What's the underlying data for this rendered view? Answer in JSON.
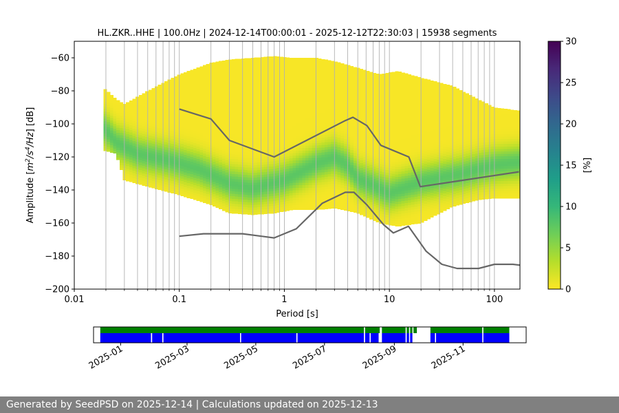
{
  "chart_data": [
    {
      "type": "heatmap",
      "title": "HL.ZKR..HHE | 100.0Hz | 2024-12-14T00:00:01 - 2025-12-12T22:30:03 | 15938 segments",
      "xlabel": "Period [s]",
      "ylabel": "Amplitude [m²/s⁴/Hz] [dB]",
      "ylabel_main": "Amplitude [",
      "ylabel_unit_m": "m",
      "ylabel_sup1": "2",
      "ylabel_unit_s": "/s",
      "ylabel_sup2": "4",
      "ylabel_unit_hz": "/Hz",
      "ylabel_tail": "] [dB]",
      "x_scale": "log",
      "xlim": [
        0.01,
        175
      ],
      "ylim": [
        -200,
        -50
      ],
      "x_tick_values": [
        0.01,
        0.1,
        1,
        10,
        100
      ],
      "x_tick_labels": [
        "0.01",
        "0.1",
        "1",
        "10",
        "100"
      ],
      "y_tick_values": [
        -200,
        -180,
        -160,
        -140,
        -120,
        -100,
        -80,
        -60
      ],
      "y_tick_labels": [
        "−200",
        "−180",
        "−160",
        "−140",
        "−120",
        "−100",
        "−80",
        "−60"
      ],
      "grid": "vertical",
      "colorbar": {
        "label": "[%]",
        "range": [
          0,
          30
        ],
        "tick_values": [
          0,
          5,
          10,
          15,
          20,
          25,
          30
        ],
        "tick_labels": [
          "0",
          "5",
          "10",
          "15",
          "20",
          "25",
          "30"
        ],
        "colormap": [
          "#fde725",
          "#b5de2b",
          "#6ece58",
          "#35b779",
          "#1f9e89",
          "#26828e",
          "#31688e",
          "#3e4989",
          "#482878",
          "#440154"
        ]
      },
      "density_extent": {
        "periods": [
          0.019,
          0.025,
          0.03,
          0.05,
          0.1,
          0.2,
          0.3,
          0.5,
          0.8,
          1.2,
          2,
          3,
          5,
          8,
          12,
          20,
          40,
          70,
          100,
          175
        ],
        "upper_db": [
          -78,
          -85,
          -88,
          -80,
          -70,
          -63,
          -61,
          -60,
          -59,
          -60,
          -60,
          -62,
          -66,
          -70,
          -68,
          -72,
          -77,
          -85,
          -90,
          -92
        ],
        "lower_db": [
          -116,
          -118,
          -134,
          -138,
          -143,
          -149,
          -154,
          -155,
          -154,
          -152,
          -152,
          -151,
          -154,
          -160,
          -162,
          -160,
          -150,
          -146,
          -145,
          -145
        ]
      },
      "mode_curve": {
        "periods": [
          0.019,
          0.025,
          0.04,
          0.08,
          0.15,
          0.3,
          0.5,
          1,
          2,
          3,
          4,
          5,
          7,
          10,
          20,
          50,
          100,
          175
        ],
        "db": [
          -102,
          -111,
          -118,
          -122,
          -127,
          -136,
          -139,
          -134,
          -124,
          -120,
          -125,
          -133,
          -137,
          -142,
          -135,
          -130,
          -125,
          -123
        ]
      },
      "series": [
        {
          "periods": [
            0.1,
            0.2,
            0.3,
            0.8,
            3.8,
            4.5,
            6.1,
            8.3,
            15.3,
            19.7,
            171
          ],
          "db": [
            -91,
            -97,
            -110,
            -120,
            -98,
            -96,
            -101,
            -113,
            -120,
            -138,
            -129
          ]
        },
        {
          "periods": [
            0.1,
            0.17,
            0.4,
            0.8,
            1.3,
            2.3,
            3.8,
            4.6,
            6.1,
            8.8,
            10.9,
            15.2,
            22.3,
            31.6,
            44.1,
            70.7,
            100,
            150,
            175
          ],
          "db": [
            -168,
            -166.5,
            -166.5,
            -169,
            -163.5,
            -148,
            -141.4,
            -141.4,
            -149,
            -161,
            -166,
            -162,
            -177,
            -185,
            -187.5,
            -187.5,
            -185,
            -185,
            -185.5
          ]
        }
      ]
    },
    {
      "type": "timeline",
      "x_tick_labels": [
        "2025-01",
        "2025-03",
        "2025-05",
        "2025-07",
        "2025-09",
        "2025-11"
      ],
      "x_tick_dates": [
        "2025-01-01",
        "2025-03-01",
        "2025-05-01",
        "2025-07-01",
        "2025-09-01",
        "2025-11-01"
      ],
      "range": [
        "2024-12-08",
        "2025-12-27"
      ],
      "colors": {
        "green": "#008000",
        "blue": "#0000ff"
      },
      "green_segments": [
        [
          "2024-12-14",
          "2025-08-05"
        ],
        [
          "2025-08-06",
          "2025-08-19"
        ],
        [
          "2025-08-21",
          "2025-09-11"
        ],
        [
          "2025-09-12",
          "2025-09-14"
        ],
        [
          "2025-09-15",
          "2025-09-17"
        ],
        [
          "2025-09-18",
          "2025-09-21"
        ],
        [
          "2025-10-03",
          "2025-11-18"
        ],
        [
          "2025-11-19",
          "2025-12-12"
        ]
      ],
      "blue_segments": [
        [
          "2024-12-14",
          "2025-01-28"
        ],
        [
          "2025-01-29",
          "2025-02-07"
        ],
        [
          "2025-02-08",
          "2025-04-17"
        ],
        [
          "2025-04-18",
          "2025-06-06"
        ],
        [
          "2025-06-07",
          "2025-08-05"
        ],
        [
          "2025-08-06",
          "2025-08-10"
        ],
        [
          "2025-08-11",
          "2025-08-18"
        ],
        [
          "2025-08-21",
          "2025-09-11"
        ],
        [
          "2025-09-12",
          "2025-09-14"
        ],
        [
          "2025-09-15",
          "2025-09-17"
        ],
        [
          "2025-10-03",
          "2025-10-07"
        ],
        [
          "2025-10-08",
          "2025-11-18"
        ],
        [
          "2025-11-19",
          "2025-12-12"
        ]
      ]
    }
  ],
  "footer": {
    "text": "Generated by SeedPSD on 2025-12-14 | Calculations updated on 2025-12-13"
  }
}
